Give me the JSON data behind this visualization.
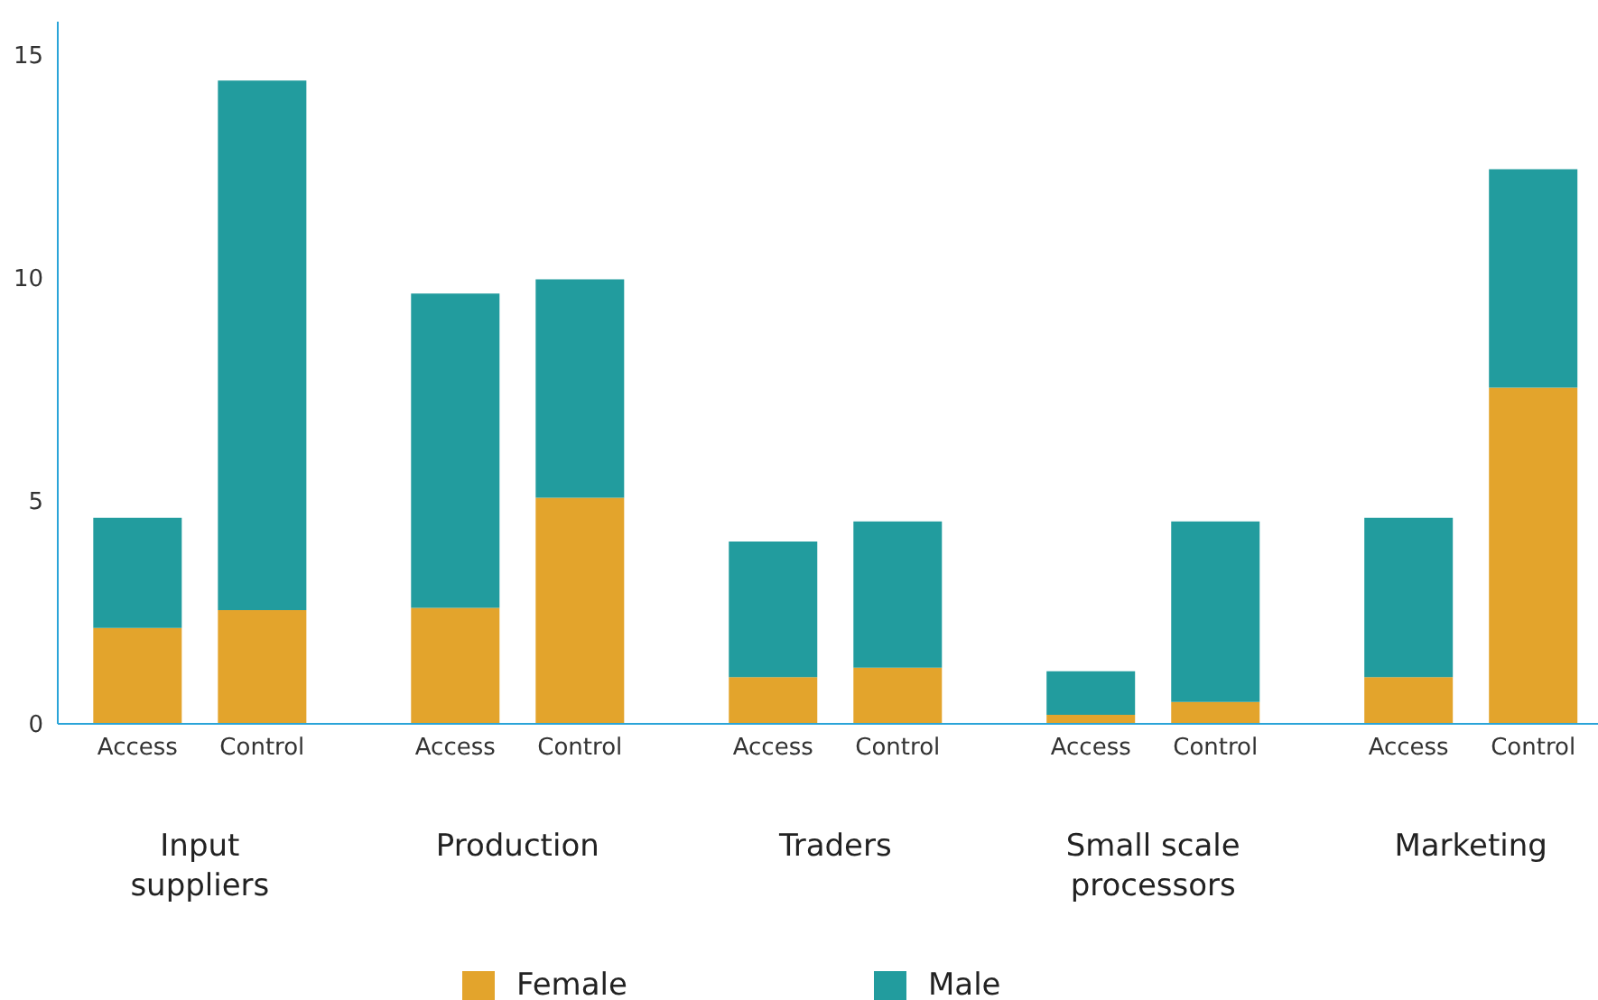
{
  "chart_data": {
    "type": "bar",
    "stacked": true,
    "categories": [
      "Access",
      "Control",
      "Access",
      "Control",
      "Access",
      "Control",
      "Access",
      "Control",
      "Access",
      "Control"
    ],
    "annotations": [
      "Input suppliers",
      "Production",
      "Traders",
      "Small scale processors",
      "Marketing"
    ],
    "series": [
      {
        "name": "Female",
        "color": "#e3a42c",
        "values": [
          2.15,
          2.55,
          2.6,
          5.07,
          1.05,
          1.26,
          0.2,
          0.49,
          1.05,
          7.54
        ]
      },
      {
        "name": "Male",
        "color": "#229c9e",
        "values": [
          2.47,
          11.88,
          7.05,
          4.9,
          3.04,
          3.28,
          0.98,
          4.05,
          3.57,
          4.9
        ]
      }
    ],
    "ylim": [
      0,
      15.75
    ],
    "yticks": [
      0,
      5,
      10,
      15
    ],
    "legend": "bottom"
  }
}
